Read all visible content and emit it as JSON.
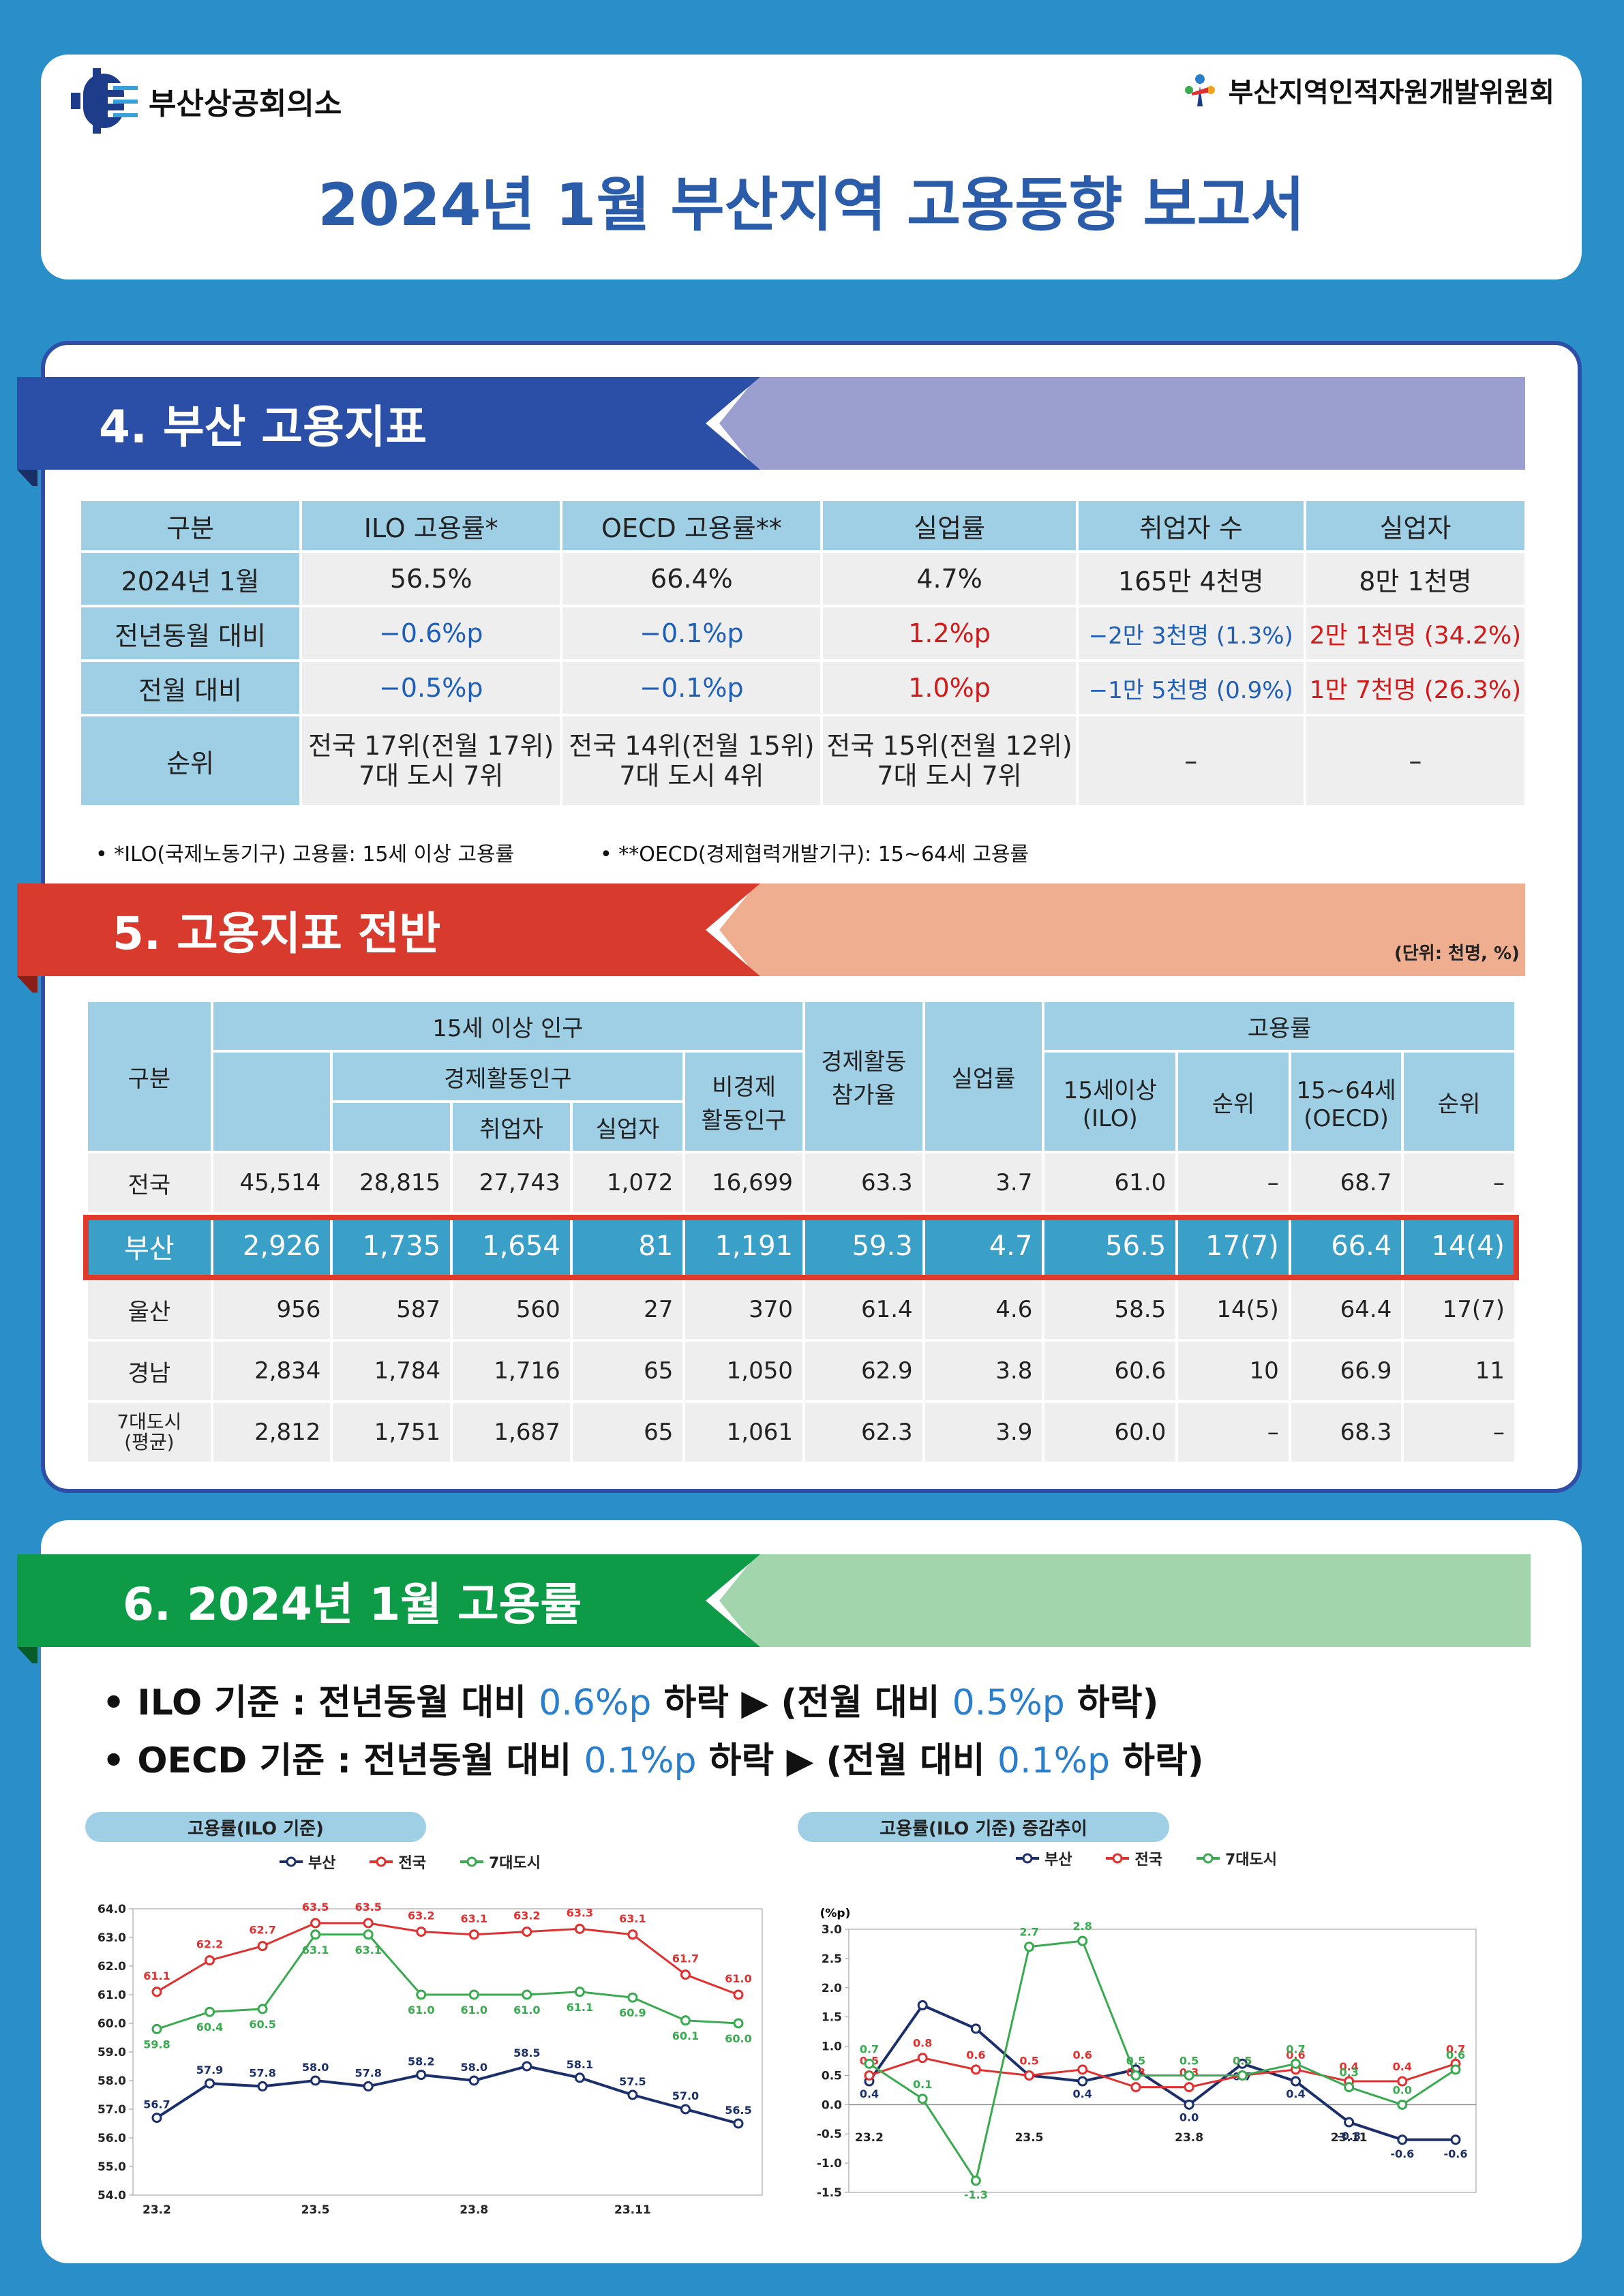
{
  "header": {
    "org_left": "부산상공회의소",
    "org_right": "부산지역인적자원개발위원회",
    "title": "2024년 1월 부산지역 고용동향 보고서"
  },
  "section4": {
    "title": "4. 부산 고용지표",
    "headers": [
      "구분",
      "ILO 고용률*",
      "OECD 고용률**",
      "실업률",
      "취업자 수",
      "실업자"
    ],
    "rows": [
      {
        "label": "2024년 1월",
        "cells": [
          "56.5%",
          "66.4%",
          "4.7%",
          "165만 4천명",
          "8만 1천명"
        ]
      },
      {
        "label": "전년동월 대비",
        "cells": [
          "−0.6%p",
          "−0.1%p",
          "1.2%p",
          "−2만 3천명 (1.3%)",
          "2만 1천명 (34.2%)"
        ]
      },
      {
        "label": "전월 대비",
        "cells": [
          "−0.5%p",
          "−0.1%p",
          "1.0%p",
          "−1만 5천명 (0.9%)",
          "1만 7천명 (26.3%)"
        ]
      }
    ],
    "rank_label": "순위",
    "rank_cells": [
      [
        "전국 17위(전월 17위)",
        "7대 도시 7위"
      ],
      [
        "전국 14위(전월 15위)",
        "7대 도시 4위"
      ],
      [
        "전국 15위(전월 12위)",
        "7대 도시 7위"
      ],
      [
        "–"
      ],
      [
        "–"
      ]
    ],
    "note1": "• *ILO(국제노동기구) 고용률: 15세 이상 고용률",
    "note2": "• **OECD(경제협력개발기구): 15~64세 고용률"
  },
  "section5": {
    "title": "5. 고용지표 전반",
    "unit": "(단위: 천명, %)",
    "h_gubun": "구분",
    "h_pop": "15세 이상 인구",
    "h_econ": "경제활동인구",
    "h_emp": "취업자",
    "h_unemp": "실업자",
    "h_nonecon": "비경제\n활동인구",
    "h_part": "경제활동\n참가율",
    "h_unrate": "실업률",
    "h_emprate": "고용률",
    "h_ilo": "15세이상\n(ILO)",
    "h_rank": "순위",
    "h_oecd": "15~64세\n(OECD)",
    "h_rank2": "순위",
    "rows": [
      {
        "label": "전국",
        "v": [
          "45,514",
          "28,815",
          "27,743",
          "1,072",
          "16,699",
          "63.3",
          "3.7",
          "61.0",
          "–",
          "68.7",
          "–"
        ]
      },
      {
        "label": "부산",
        "v": [
          "2,926",
          "1,735",
          "1,654",
          "81",
          "1,191",
          "59.3",
          "4.7",
          "56.5",
          "17(7)",
          "66.4",
          "14(4)"
        ]
      },
      {
        "label": "울산",
        "v": [
          "956",
          "587",
          "560",
          "27",
          "370",
          "61.4",
          "4.6",
          "58.5",
          "14(5)",
          "64.4",
          "17(7)"
        ]
      },
      {
        "label": "경남",
        "v": [
          "2,834",
          "1,784",
          "1,716",
          "65",
          "1,050",
          "62.9",
          "3.8",
          "60.6",
          "10",
          "66.9",
          "11"
        ]
      },
      {
        "label": "7대도시\n(평균)",
        "v": [
          "2,812",
          "1,751",
          "1,687",
          "65",
          "1,061",
          "62.3",
          "3.9",
          "60.0",
          "–",
          "68.3",
          "–"
        ]
      }
    ]
  },
  "section6": {
    "title": "6. 2024년 1월 고용률",
    "bullet1": {
      "a": "• ILO 기준 : 전년동월 대비 ",
      "v1": "0.6%p",
      "b": " 하락 ▶ (전월 대비 ",
      "v2": "0.5%p",
      "c": " 하락)"
    },
    "bullet2": {
      "a": "• OECD 기준 : 전년동월 대비 ",
      "v1": "0.1%p",
      "b": " 하락 ▶ (전월 대비 ",
      "v2": "0.1%p",
      "c": " 하락)"
    }
  },
  "colors": {
    "busan": "#1b2f6b",
    "nation": "#e03030",
    "seven": "#3aaa50",
    "sec4": "#2b4fa6",
    "sec5": "#d93a2e",
    "sec6": "#0d9b48"
  },
  "chart_data": [
    {
      "type": "line",
      "title": "고용률(ILO 기준)",
      "x": [
        "23.2",
        "23.3",
        "23.4",
        "23.5",
        "23.6",
        "23.7",
        "23.8",
        "23.9",
        "23.10",
        "23.11",
        "23.12",
        "24.1"
      ],
      "xticks": [
        "23.2",
        "23.5",
        "23.8",
        "23.11"
      ],
      "ylim": [
        54.0,
        64.0
      ],
      "yticks": [
        "54.0",
        "55.0",
        "56.0",
        "57.0",
        "58.0",
        "59.0",
        "60.0",
        "61.0",
        "62.0",
        "63.0",
        "64.0"
      ],
      "series": [
        {
          "name": "부산",
          "values": [
            56.7,
            57.9,
            57.8,
            58.0,
            57.8,
            58.2,
            58.0,
            58.5,
            58.1,
            57.5,
            57.0,
            56.5
          ]
        },
        {
          "name": "전국",
          "values": [
            61.1,
            62.2,
            62.7,
            63.5,
            63.5,
            63.2,
            63.1,
            63.2,
            63.3,
            63.1,
            61.7,
            61.0
          ]
        },
        {
          "name": "7대도시",
          "values": [
            59.8,
            60.4,
            60.5,
            63.1,
            63.1,
            61.0,
            61.0,
            61.0,
            61.1,
            60.9,
            60.1,
            60.0
          ]
        }
      ],
      "labels": [
        [
          "56.7",
          "57.9",
          "57.8",
          "58.0",
          "57.8",
          "58.2",
          "58.0",
          "58.5",
          "58.1",
          "57.5",
          "57.0",
          "56.5"
        ],
        [
          "61.1",
          "62.2",
          "62.7",
          "63.5",
          "63.5",
          "63.2",
          "63.1",
          "63.2",
          "63.3",
          "63.1",
          "61.7",
          "61.0"
        ],
        [
          "59.8",
          "60.4",
          "60.5",
          "63.1",
          "63.1",
          "61.0",
          "61.0",
          "61.0",
          "61.1",
          "60.9",
          "60.1",
          "60.0"
        ]
      ]
    },
    {
      "type": "line",
      "title": "고용률(ILO 기준) 증감추이",
      "ylabel": "(%p)",
      "x": [
        "23.2",
        "23.3",
        "23.4",
        "23.5",
        "23.6",
        "23.7",
        "23.8",
        "23.9",
        "23.10",
        "23.11",
        "23.12",
        "24.1"
      ],
      "xticks": [
        "23.2",
        "23.5",
        "23.8",
        "23.11"
      ],
      "ylim": [
        -1.5,
        3.0
      ],
      "yticks": [
        "-1.5",
        "-1.0",
        "-0.5",
        "0.0",
        "0.5",
        "1.0",
        "1.5",
        "2.0",
        "2.5",
        "3.0"
      ],
      "series": [
        {
          "name": "부산",
          "values": [
            0.4,
            1.7,
            1.3,
            0.5,
            0.4,
            0.6,
            0.0,
            0.7,
            0.4,
            -0.3,
            -0.6,
            -0.6
          ]
        },
        {
          "name": "전국",
          "values": [
            0.5,
            0.8,
            0.6,
            0.5,
            0.6,
            0.3,
            0.3,
            0.5,
            0.6,
            0.4,
            0.4,
            0.7
          ]
        },
        {
          "name": "7대도시",
          "values": [
            0.7,
            0.1,
            -1.3,
            2.7,
            2.8,
            0.5,
            0.5,
            0.5,
            0.7,
            0.3,
            0.0,
            0.6
          ]
        }
      ],
      "labels": [
        [
          "0.4",
          "",
          "",
          "",
          "0.4",
          "",
          "0.0",
          "0.7",
          "0.4",
          "-0.3",
          "-0.6",
          "-0.6"
        ],
        [
          "0.5",
          "0.8",
          "0.6",
          "0.5",
          "0.6",
          "0.3",
          "0.3",
          "0.5",
          "0.6",
          "0.4",
          "0.4",
          "0.7"
        ],
        [
          "0.7",
          "0.1",
          "-1.3",
          "2.7",
          "2.8",
          "0.5",
          "0.5",
          "0.5",
          "0.7",
          "0.3",
          "0.0",
          "0.6"
        ]
      ]
    }
  ]
}
